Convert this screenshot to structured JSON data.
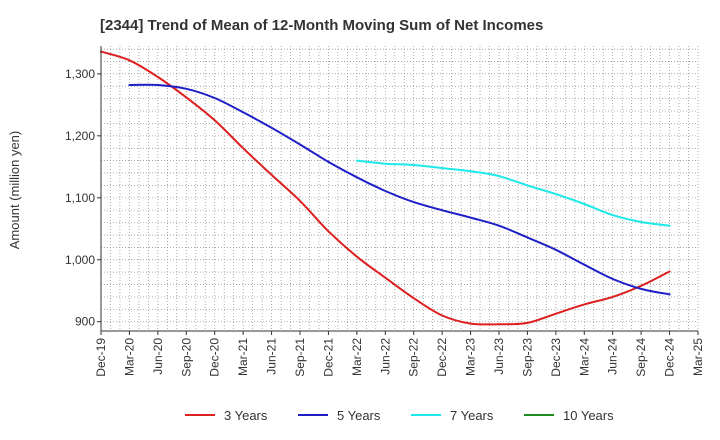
{
  "chart_data": {
    "type": "line",
    "title": "[2344]  Trend of Mean of 12-Month Moving Sum of Net Incomes",
    "ylabel": "Amount (million yen)",
    "xlabel": "",
    "ylim": [
      885,
      1345
    ],
    "yticks": [
      900,
      1000,
      1100,
      1200,
      1300
    ],
    "ytick_labels": [
      "900",
      "1,000",
      "1,100",
      "1,200",
      "1,300"
    ],
    "x_start": "Dec-19",
    "x_end": "Mar-25",
    "x_ticks": [
      "Dec-19",
      "Mar-20",
      "Jun-20",
      "Sep-20",
      "Dec-20",
      "Mar-21",
      "Jun-21",
      "Sep-21",
      "Dec-21",
      "Mar-22",
      "Jun-22",
      "Sep-22",
      "Dec-22",
      "Mar-23",
      "Jun-23",
      "Sep-23",
      "Dec-23",
      "Mar-24",
      "Jun-24",
      "Sep-24",
      "Dec-24",
      "Mar-25"
    ],
    "grid": true,
    "legend_position": "bottom",
    "series": [
      {
        "name": "3 Years",
        "color": "#dd1f1f",
        "x": [
          "Dec-19",
          "Mar-20",
          "Jun-20",
          "Sep-20",
          "Dec-20",
          "Mar-21",
          "Jun-21",
          "Sep-21",
          "Dec-21",
          "Mar-22",
          "Jun-22",
          "Sep-22",
          "Dec-22",
          "Mar-23",
          "Jun-23",
          "Sep-23",
          "Dec-23",
          "Mar-24",
          "Jun-24",
          "Sep-24",
          "Dec-24"
        ],
        "values": [
          1336,
          1322,
          1295,
          1262,
          1225,
          1180,
          1137,
          1095,
          1046,
          1005,
          971,
          938,
          910,
          897,
          896,
          898,
          913,
          928,
          940,
          958,
          981
        ]
      },
      {
        "name": "5 Years",
        "color": "#1f1fc8",
        "x": [
          "Mar-20",
          "Jun-20",
          "Sep-20",
          "Dec-20",
          "Mar-21",
          "Jun-21",
          "Sep-21",
          "Dec-21",
          "Mar-22",
          "Jun-22",
          "Sep-22",
          "Dec-22",
          "Mar-23",
          "Jun-23",
          "Sep-23",
          "Dec-23",
          "Mar-24",
          "Jun-24",
          "Sep-24",
          "Dec-24"
        ],
        "values": [
          1282,
          1282,
          1276,
          1261,
          1238,
          1213,
          1186,
          1158,
          1133,
          1111,
          1093,
          1080,
          1068,
          1055,
          1036,
          1016,
          992,
          969,
          953,
          944
        ]
      },
      {
        "name": "7 Years",
        "color": "#1fe8e8",
        "x": [
          "Mar-22",
          "Jun-22",
          "Sep-22",
          "Dec-22",
          "Mar-23",
          "Jun-23",
          "Sep-23",
          "Dec-23",
          "Mar-24",
          "Jun-24",
          "Sep-24",
          "Dec-24"
        ],
        "values": [
          1160,
          1155,
          1153,
          1148,
          1143,
          1135,
          1120,
          1106,
          1090,
          1072,
          1061,
          1055
        ]
      },
      {
        "name": "10 Years",
        "color": "#1f8c1f",
        "x": [],
        "values": []
      }
    ]
  }
}
